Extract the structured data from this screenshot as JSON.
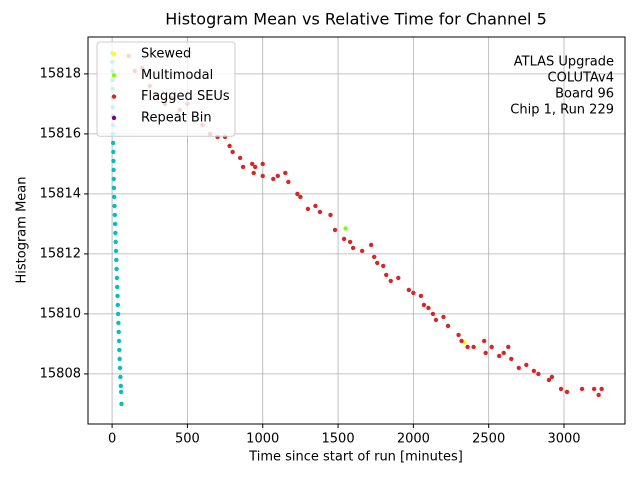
{
  "chart_data": {
    "type": "scatter",
    "title": "Histogram Mean vs Relative Time for Channel 5",
    "xlabel": "Time since start of run [minutes]",
    "ylabel": "Histogram Mean",
    "annotation": [
      "ATLAS Upgrade",
      "COLUTAv4",
      "Board 96",
      "Chip 1, Run 229"
    ],
    "xlim": [
      -160,
      3405
    ],
    "ylim": [
      15806.33,
      15819.23
    ],
    "xticks": [
      0,
      500,
      1000,
      1500,
      2000,
      2500,
      3000
    ],
    "yticks": [
      15808,
      15810,
      15812,
      15814,
      15816,
      15818
    ],
    "grid": true,
    "legend": "upper left",
    "series": [
      {
        "color": "#00c0c0",
        "x": [
          0,
          1,
          2,
          2,
          3,
          3,
          4,
          5,
          5,
          6,
          7,
          8,
          9,
          10,
          11,
          12,
          14,
          16,
          18,
          20,
          22,
          24,
          26,
          28,
          30,
          32,
          34,
          36,
          38,
          40,
          42,
          44,
          46,
          48,
          50,
          52,
          55,
          58,
          60,
          62
        ],
        "values": [
          15818.7,
          15818.4,
          15818.1,
          15817.8,
          15817.5,
          15817.2,
          15816.9,
          15816.6,
          15816.3,
          15816.0,
          15815.7,
          15815.4,
          15815.1,
          15814.8,
          15814.5,
          15814.2,
          15813.9,
          15813.6,
          15813.3,
          15813.0,
          15812.7,
          15812.4,
          15812.1,
          15811.8,
          15811.5,
          15811.2,
          15810.9,
          15810.6,
          15810.3,
          15810.0,
          15809.7,
          15809.4,
          15809.1,
          15808.8,
          15808.5,
          15808.2,
          15807.9,
          15807.6,
          15807.4,
          15807.0
        ]
      },
      {
        "name": "Skewed",
        "color": "#ffff00",
        "x": [
          2340
        ],
        "values": [
          15809.05
        ]
      },
      {
        "name": "Multimodal",
        "color": "#7fff00",
        "x": [
          1550
        ],
        "values": [
          15812.85
        ]
      },
      {
        "name": "Flagged SEUs",
        "color": "#d62728",
        "x": [
          110,
          150,
          200,
          250,
          300,
          350,
          400,
          450,
          500,
          600,
          650,
          700,
          750,
          780,
          800,
          850,
          870,
          930,
          950,
          1000,
          940,
          1000,
          1070,
          1100,
          1150,
          1170,
          1230,
          1250,
          1300,
          1350,
          1380,
          1450,
          1480,
          1540,
          1580,
          1600,
          1660,
          1720,
          1740,
          1760,
          1800,
          1820,
          1850,
          1900,
          1970,
          2000,
          2050,
          2070,
          2100,
          2130,
          2150,
          2200,
          2230,
          2300,
          2320,
          2360,
          2400,
          2470,
          2480,
          2520,
          2570,
          2600,
          2630,
          2650,
          2700,
          2750,
          2800,
          2830,
          2900,
          2920,
          2980,
          3020,
          3120,
          3200,
          3230,
          3250
        ],
        "values": [
          15818.6,
          15818.1,
          15818.2,
          15817.6,
          15817.3,
          15817.0,
          15817.2,
          15816.8,
          15817.0,
          15816.3,
          15816.0,
          15815.9,
          15815.9,
          15815.6,
          15815.4,
          15815.2,
          15814.9,
          15815.0,
          15814.9,
          15815.0,
          15814.7,
          15814.6,
          15814.5,
          15814.6,
          15814.7,
          15814.4,
          15814.0,
          15813.9,
          15813.5,
          15813.6,
          15813.4,
          15813.3,
          15812.8,
          15812.5,
          15812.4,
          15812.2,
          15812.1,
          15812.3,
          15811.9,
          15811.7,
          15811.6,
          15811.3,
          15811.1,
          15811.2,
          15810.8,
          15810.7,
          15810.6,
          15810.3,
          15810.2,
          15810.0,
          15809.8,
          15809.9,
          15809.6,
          15809.3,
          15809.1,
          15808.9,
          15808.9,
          15809.1,
          15808.7,
          15808.9,
          15808.6,
          15808.7,
          15808.9,
          15808.5,
          15808.2,
          15808.3,
          15808.1,
          15808.0,
          15807.8,
          15807.9,
          15807.5,
          15807.4,
          15807.5,
          15807.5,
          15807.3,
          15807.5
        ]
      },
      {
        "name": "Repeat Bin",
        "color": "#800080",
        "x": [],
        "values": []
      }
    ]
  }
}
